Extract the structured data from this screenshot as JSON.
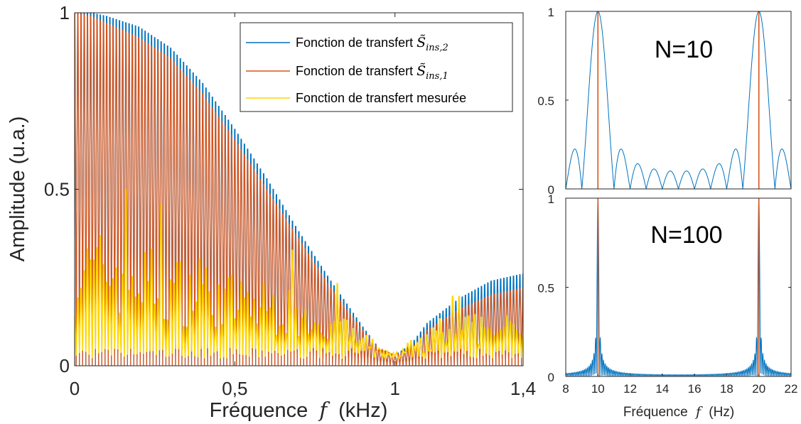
{
  "colors": {
    "series1": "#0072BD",
    "series2": "#D95319",
    "series3": "#FFD500",
    "axis": "#262626"
  },
  "chart_data": [
    {
      "type": "line",
      "xlabel": "Fréquence",
      "xlabel_var": "f",
      "xlabel_unit": "(kHz)",
      "ylabel": "Amplitude (u.a.)",
      "xlim": [
        0,
        1.4
      ],
      "ylim": [
        0,
        1
      ],
      "x_ticks": [
        0,
        0.5,
        1,
        1.4
      ],
      "x_tick_labels": [
        "0",
        "0,5",
        "1",
        "1,4"
      ],
      "y_ticks": [
        0,
        0.5,
        1
      ],
      "y_tick_labels": [
        "0",
        "0.5",
        "1"
      ],
      "legend_placement": "top-right",
      "series": [
        {
          "name": "Fonction de transfert S̃ins,2",
          "legend_prefix": "Fonction de transfert ",
          "legend_sym": "S̃",
          "legend_sub": "ins,2",
          "color": "#0072BD",
          "envelope": {
            "x": [
              0,
              0.05,
              0.1,
              0.2,
              0.3,
              0.4,
              0.5,
              0.6,
              0.7,
              0.8,
              0.9,
              0.95,
              1.0,
              1.05,
              1.1,
              1.2,
              1.3,
              1.4
            ],
            "y": [
              1.0,
              1.0,
              0.99,
              0.96,
              0.9,
              0.8,
              0.67,
              0.53,
              0.38,
              0.24,
              0.11,
              0.05,
              0.03,
              0.06,
              0.12,
              0.19,
              0.24,
              0.26
            ]
          }
        },
        {
          "name": "Fonction de transfert S̃ins,1",
          "legend_prefix": "Fonction de transfert ",
          "legend_sym": "S̃",
          "legend_sub": "ins,1",
          "color": "#D95319",
          "envelope": {
            "x": [
              0,
              0.05,
              0.1,
              0.2,
              0.3,
              0.4,
              0.5,
              0.6,
              0.7,
              0.8,
              0.9,
              0.95,
              1.0,
              1.05,
              1.1,
              1.2,
              1.3,
              1.4
            ],
            "y": [
              1.0,
              0.99,
              0.97,
              0.93,
              0.87,
              0.77,
              0.64,
              0.5,
              0.36,
              0.22,
              0.1,
              0.05,
              0.03,
              0.05,
              0.1,
              0.16,
              0.2,
              0.22
            ]
          }
        },
        {
          "name": "Fonction de transfert mesurée",
          "color": "#FFD500",
          "envelope": {
            "x": [
              0,
              0.05,
              0.1,
              0.2,
              0.3,
              0.4,
              0.5,
              0.6,
              0.7,
              0.8,
              0.9,
              0.95,
              1.0,
              1.05,
              1.1,
              1.2,
              1.3,
              1.4
            ],
            "y": [
              0.4,
              0.37,
              0.4,
              0.36,
              0.32,
              0.3,
              0.26,
              0.24,
              0.22,
              0.17,
              0.1,
              0.06,
              0.03,
              0.05,
              0.1,
              0.15,
              0.15,
              0.14
            ]
          }
        }
      ]
    },
    {
      "type": "line",
      "annotation": "N=10",
      "xlim": [
        8,
        22
      ],
      "ylim": [
        0,
        1
      ],
      "y_ticks": [
        0,
        0.5,
        1
      ],
      "y_tick_labels": [
        "0",
        "0.5",
        "1"
      ],
      "N": 10,
      "peaks_hz": [
        10,
        20
      ],
      "series": [
        {
          "name": "Fonction de transfert S̃ins,2",
          "color": "#0072BD"
        },
        {
          "name": "Fonction de transfert S̃ins,1",
          "color": "#D95319"
        }
      ]
    },
    {
      "type": "line",
      "annotation": "N=100",
      "xlabel": "Fréquence",
      "xlabel_var": "f",
      "xlabel_unit": "(Hz)",
      "xlim": [
        8,
        22
      ],
      "ylim": [
        0,
        1
      ],
      "x_ticks": [
        8,
        10,
        12,
        14,
        16,
        18,
        20,
        22
      ],
      "x_tick_labels": [
        "8",
        "10",
        "12",
        "14",
        "16",
        "18",
        "20",
        "22"
      ],
      "y_ticks": [
        0,
        0.5,
        1
      ],
      "y_tick_labels": [
        "0",
        "0.5",
        "1"
      ],
      "N": 100,
      "peaks_hz": [
        10,
        20
      ],
      "series": [
        {
          "name": "Fonction de transfert S̃ins,2",
          "color": "#0072BD"
        },
        {
          "name": "Fonction de transfert S̃ins,1",
          "color": "#D95319"
        }
      ]
    }
  ]
}
